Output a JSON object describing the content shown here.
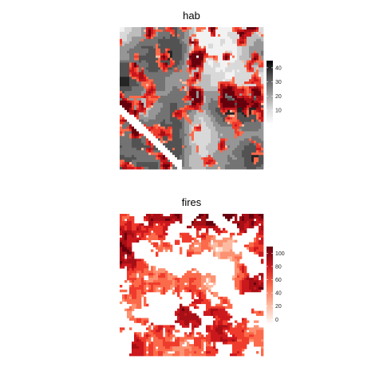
{
  "chart_data": [
    {
      "type": "heatmap",
      "title": "hab",
      "xlabel": "",
      "ylabel": "",
      "grid": false,
      "legend": "right",
      "description": "raster of habitat values (greyscale) with fire overlay in reds",
      "base_palette": [
        "#f2f2f2",
        "#d9d9d9",
        "#bdbdbd",
        "#969696",
        "#737373",
        "#525252",
        "#252525"
      ],
      "overlay_palette": [
        "#fcbba1",
        "#fb6a4a",
        "#ef3b2c",
        "#cb181d",
        "#a50f15",
        "#67000d"
      ],
      "colorbar": {
        "range": [
          0,
          45
        ],
        "ticks": [
          "10",
          "20",
          "30",
          "40"
        ],
        "tick_values": [
          10,
          20,
          30,
          40
        ],
        "colors": [
          "#ffffff",
          "#d9d9d9",
          "#969696",
          "#525252",
          "#000000"
        ]
      }
    },
    {
      "type": "heatmap",
      "title": "fires",
      "xlabel": "",
      "ylabel": "",
      "grid": false,
      "legend": "right",
      "description": "raster of fire values, white = 0 up to dark red = 100",
      "palette": [
        "#fee0d2",
        "#fcbba1",
        "#fc9272",
        "#fb6a4a",
        "#ef3b2c",
        "#cb181d",
        "#a50f15",
        "#67000d"
      ],
      "colorbar": {
        "range": [
          -8,
          110
        ],
        "ticks": [
          "0",
          "20",
          "40",
          "60",
          "80",
          "100"
        ],
        "tick_values": [
          0,
          20,
          40,
          60,
          80,
          100
        ],
        "colors": [
          "#ffffff",
          "#fcbba1",
          "#fb6a4a",
          "#cb181d",
          "#67000d"
        ]
      }
    }
  ]
}
